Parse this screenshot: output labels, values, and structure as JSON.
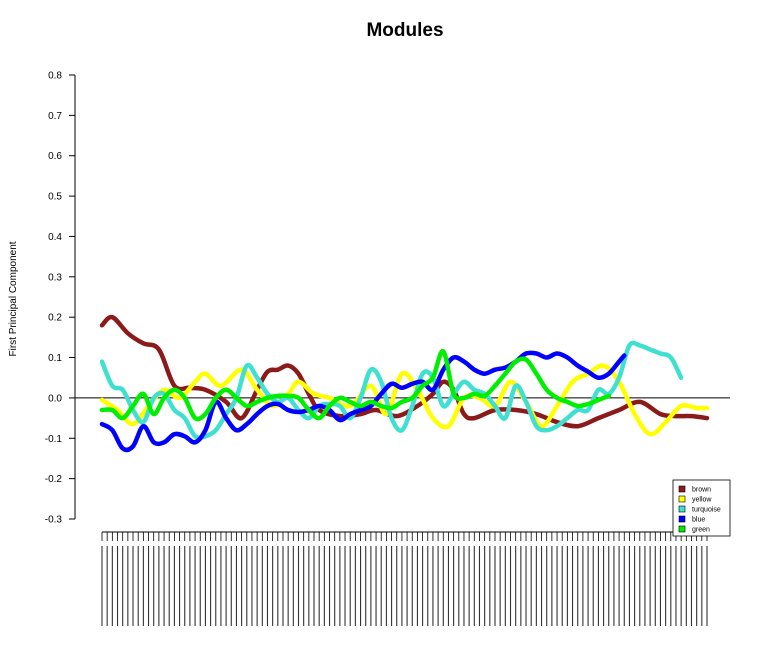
{
  "chart_data": {
    "type": "line",
    "title": "Modules",
    "xlabel": "",
    "ylabel": "First Principal Component",
    "ylim": [
      -0.3,
      0.8
    ],
    "yticks": [
      -0.3,
      -0.2,
      -0.1,
      0.0,
      0.1,
      0.2,
      0.3,
      0.4,
      0.5,
      0.6,
      0.7,
      0.8
    ],
    "ytick_labels": [
      "-0.3",
      "-0.2",
      "-0.1",
      "0.0",
      "0.1",
      "0.2",
      "0.3",
      "0.4",
      "0.5",
      "0.6",
      "0.7",
      "0.8"
    ],
    "x_count": 118,
    "reference_line": 0.0,
    "grid": false,
    "legend_position": "bottom-right",
    "series": [
      {
        "name": "brown",
        "color": "#8b1a1a",
        "points": [
          [
            0,
            0.18
          ],
          [
            2,
            0.2
          ],
          [
            5,
            0.16
          ],
          [
            8,
            0.135
          ],
          [
            11,
            0.12
          ],
          [
            14,
            0.03
          ],
          [
            17,
            0.025
          ],
          [
            20,
            0.02
          ],
          [
            24,
            -0.01
          ],
          [
            27,
            -0.05
          ],
          [
            30,
            0.02
          ],
          [
            32,
            0.065
          ],
          [
            34,
            0.07
          ],
          [
            36,
            0.08
          ],
          [
            38,
            0.06
          ],
          [
            40,
            0.01
          ],
          [
            42,
            -0.03
          ],
          [
            46,
            -0.045
          ],
          [
            50,
            -0.04
          ],
          [
            53,
            -0.03
          ],
          [
            57,
            -0.045
          ],
          [
            61,
            -0.02
          ],
          [
            64,
            0.01
          ],
          [
            66,
            0.04
          ],
          [
            68,
            0.02
          ],
          [
            70,
            -0.04
          ],
          [
            72,
            -0.05
          ],
          [
            76,
            -0.03
          ],
          [
            80,
            -0.03
          ],
          [
            84,
            -0.04
          ],
          [
            88,
            -0.06
          ],
          [
            92,
            -0.07
          ],
          [
            96,
            -0.05
          ],
          [
            100,
            -0.03
          ],
          [
            104,
            -0.01
          ],
          [
            108,
            -0.04
          ],
          [
            111,
            -0.045
          ],
          [
            114,
            -0.045
          ],
          [
            117,
            -0.05
          ]
        ]
      },
      {
        "name": "yellow",
        "color": "#ffff00",
        "points": [
          [
            0,
            -0.005
          ],
          [
            3,
            -0.03
          ],
          [
            6,
            -0.065
          ],
          [
            9,
            -0.02
          ],
          [
            12,
            0.02
          ],
          [
            15,
            0.0
          ],
          [
            18,
            0.04
          ],
          [
            20,
            0.06
          ],
          [
            23,
            0.03
          ],
          [
            27,
            0.07
          ],
          [
            30,
            0.02
          ],
          [
            33,
            -0.02
          ],
          [
            36,
            0.01
          ],
          [
            38,
            0.04
          ],
          [
            41,
            0.01
          ],
          [
            44,
            0.0
          ],
          [
            48,
            -0.02
          ],
          [
            52,
            0.03
          ],
          [
            55,
            -0.04
          ],
          [
            58,
            0.06
          ],
          [
            61,
            0.02
          ],
          [
            64,
            -0.05
          ],
          [
            67,
            -0.07
          ],
          [
            70,
            0.0
          ],
          [
            73,
            0.0
          ],
          [
            76,
            -0.02
          ],
          [
            79,
            0.04
          ],
          [
            82,
            -0.01
          ],
          [
            85,
            -0.07
          ],
          [
            88,
            -0.02
          ],
          [
            91,
            0.04
          ],
          [
            94,
            0.06
          ],
          [
            97,
            0.08
          ],
          [
            100,
            0.04
          ],
          [
            103,
            -0.04
          ],
          [
            106,
            -0.09
          ],
          [
            109,
            -0.06
          ],
          [
            112,
            -0.02
          ],
          [
            115,
            -0.025
          ],
          [
            117,
            -0.025
          ]
        ]
      },
      {
        "name": "turquoise",
        "color": "#40e0d0",
        "points": [
          [
            0,
            0.09
          ],
          [
            2,
            0.03
          ],
          [
            4,
            0.02
          ],
          [
            6,
            -0.03
          ],
          [
            8,
            -0.06
          ],
          [
            10,
            0.0
          ],
          [
            12,
            0.01
          ],
          [
            14,
            -0.03
          ],
          [
            16,
            -0.05
          ],
          [
            18,
            -0.095
          ],
          [
            20,
            -0.095
          ],
          [
            22,
            -0.08
          ],
          [
            24,
            -0.04
          ],
          [
            26,
            0.0
          ],
          [
            28,
            0.08
          ],
          [
            30,
            0.05
          ],
          [
            32,
            0.01
          ],
          [
            34,
            -0.01
          ],
          [
            36,
            0.0
          ],
          [
            38,
            -0.03
          ],
          [
            40,
            -0.05
          ],
          [
            42,
            -0.02
          ],
          [
            44,
            -0.015
          ],
          [
            46,
            -0.02
          ],
          [
            48,
            -0.05
          ],
          [
            50,
            0.0
          ],
          [
            52,
            0.07
          ],
          [
            54,
            0.04
          ],
          [
            56,
            -0.05
          ],
          [
            58,
            -0.08
          ],
          [
            60,
            -0.02
          ],
          [
            62,
            0.06
          ],
          [
            64,
            0.05
          ],
          [
            66,
            -0.02
          ],
          [
            68,
            0.01
          ],
          [
            70,
            0.04
          ],
          [
            72,
            0.02
          ],
          [
            74,
            0.01
          ],
          [
            76,
            -0.02
          ],
          [
            78,
            -0.05
          ],
          [
            80,
            0.03
          ],
          [
            82,
            -0.01
          ],
          [
            84,
            -0.07
          ],
          [
            86,
            -0.08
          ],
          [
            88,
            -0.07
          ],
          [
            90,
            -0.05
          ],
          [
            92,
            -0.03
          ],
          [
            94,
            -0.03
          ],
          [
            96,
            0.02
          ],
          [
            98,
            0.01
          ],
          [
            100,
            0.05
          ],
          [
            102,
            0.13
          ],
          [
            104,
            0.13
          ],
          [
            106,
            0.12
          ],
          [
            108,
            0.11
          ],
          [
            110,
            0.1
          ],
          [
            112,
            0.05
          ]
        ]
      },
      {
        "name": "blue",
        "color": "#0000ff",
        "points": [
          [
            0,
            -0.065
          ],
          [
            2,
            -0.08
          ],
          [
            4,
            -0.125
          ],
          [
            6,
            -0.12
          ],
          [
            8,
            -0.07
          ],
          [
            10,
            -0.11
          ],
          [
            12,
            -0.11
          ],
          [
            14,
            -0.09
          ],
          [
            16,
            -0.095
          ],
          [
            18,
            -0.11
          ],
          [
            20,
            -0.08
          ],
          [
            22,
            -0.01
          ],
          [
            24,
            -0.05
          ],
          [
            26,
            -0.08
          ],
          [
            28,
            -0.065
          ],
          [
            30,
            -0.04
          ],
          [
            32,
            -0.02
          ],
          [
            34,
            -0.015
          ],
          [
            36,
            -0.03
          ],
          [
            38,
            -0.035
          ],
          [
            40,
            -0.03
          ],
          [
            42,
            -0.02
          ],
          [
            44,
            -0.03
          ],
          [
            46,
            -0.055
          ],
          [
            48,
            -0.04
          ],
          [
            50,
            -0.03
          ],
          [
            52,
            -0.02
          ],
          [
            54,
            0.01
          ],
          [
            56,
            0.035
          ],
          [
            58,
            0.025
          ],
          [
            60,
            0.035
          ],
          [
            62,
            0.04
          ],
          [
            64,
            0.02
          ],
          [
            66,
            0.07
          ],
          [
            68,
            0.1
          ],
          [
            70,
            0.09
          ],
          [
            72,
            0.07
          ],
          [
            74,
            0.06
          ],
          [
            76,
            0.07
          ],
          [
            78,
            0.075
          ],
          [
            80,
            0.09
          ],
          [
            82,
            0.11
          ],
          [
            84,
            0.11
          ],
          [
            86,
            0.1
          ],
          [
            88,
            0.11
          ],
          [
            90,
            0.1
          ],
          [
            92,
            0.08
          ],
          [
            94,
            0.065
          ],
          [
            96,
            0.05
          ],
          [
            98,
            0.06
          ],
          [
            100,
            0.09
          ],
          [
            101,
            0.105
          ]
        ]
      },
      {
        "name": "green",
        "color": "#00ee00",
        "points": [
          [
            0,
            -0.03
          ],
          [
            2,
            -0.03
          ],
          [
            4,
            -0.05
          ],
          [
            6,
            -0.02
          ],
          [
            8,
            0.01
          ],
          [
            10,
            -0.04
          ],
          [
            12,
            0.0
          ],
          [
            14,
            0.02
          ],
          [
            16,
            0.0
          ],
          [
            18,
            -0.05
          ],
          [
            20,
            -0.04
          ],
          [
            22,
            0.0
          ],
          [
            24,
            0.02
          ],
          [
            26,
            0.0
          ],
          [
            28,
            -0.02
          ],
          [
            30,
            -0.01
          ],
          [
            32,
            0.0
          ],
          [
            34,
            0.005
          ],
          [
            36,
            0.005
          ],
          [
            38,
            0.0
          ],
          [
            40,
            -0.03
          ],
          [
            42,
            -0.05
          ],
          [
            44,
            -0.02
          ],
          [
            46,
            0.0
          ],
          [
            48,
            -0.01
          ],
          [
            50,
            -0.02
          ],
          [
            52,
            -0.01
          ],
          [
            54,
            -0.02
          ],
          [
            56,
            -0.025
          ],
          [
            58,
            -0.01
          ],
          [
            60,
            0.0
          ],
          [
            62,
            0.03
          ],
          [
            64,
            0.05
          ],
          [
            66,
            0.115
          ],
          [
            68,
            0.01
          ],
          [
            70,
            0.0
          ],
          [
            72,
            0.01
          ],
          [
            74,
            0.005
          ],
          [
            76,
            0.03
          ],
          [
            78,
            0.06
          ],
          [
            80,
            0.09
          ],
          [
            82,
            0.095
          ],
          [
            84,
            0.06
          ],
          [
            86,
            0.02
          ],
          [
            88,
            0.0
          ],
          [
            90,
            -0.01
          ],
          [
            92,
            -0.02
          ],
          [
            94,
            -0.015
          ],
          [
            96,
            -0.005
          ],
          [
            98,
            0.005
          ]
        ]
      }
    ]
  }
}
